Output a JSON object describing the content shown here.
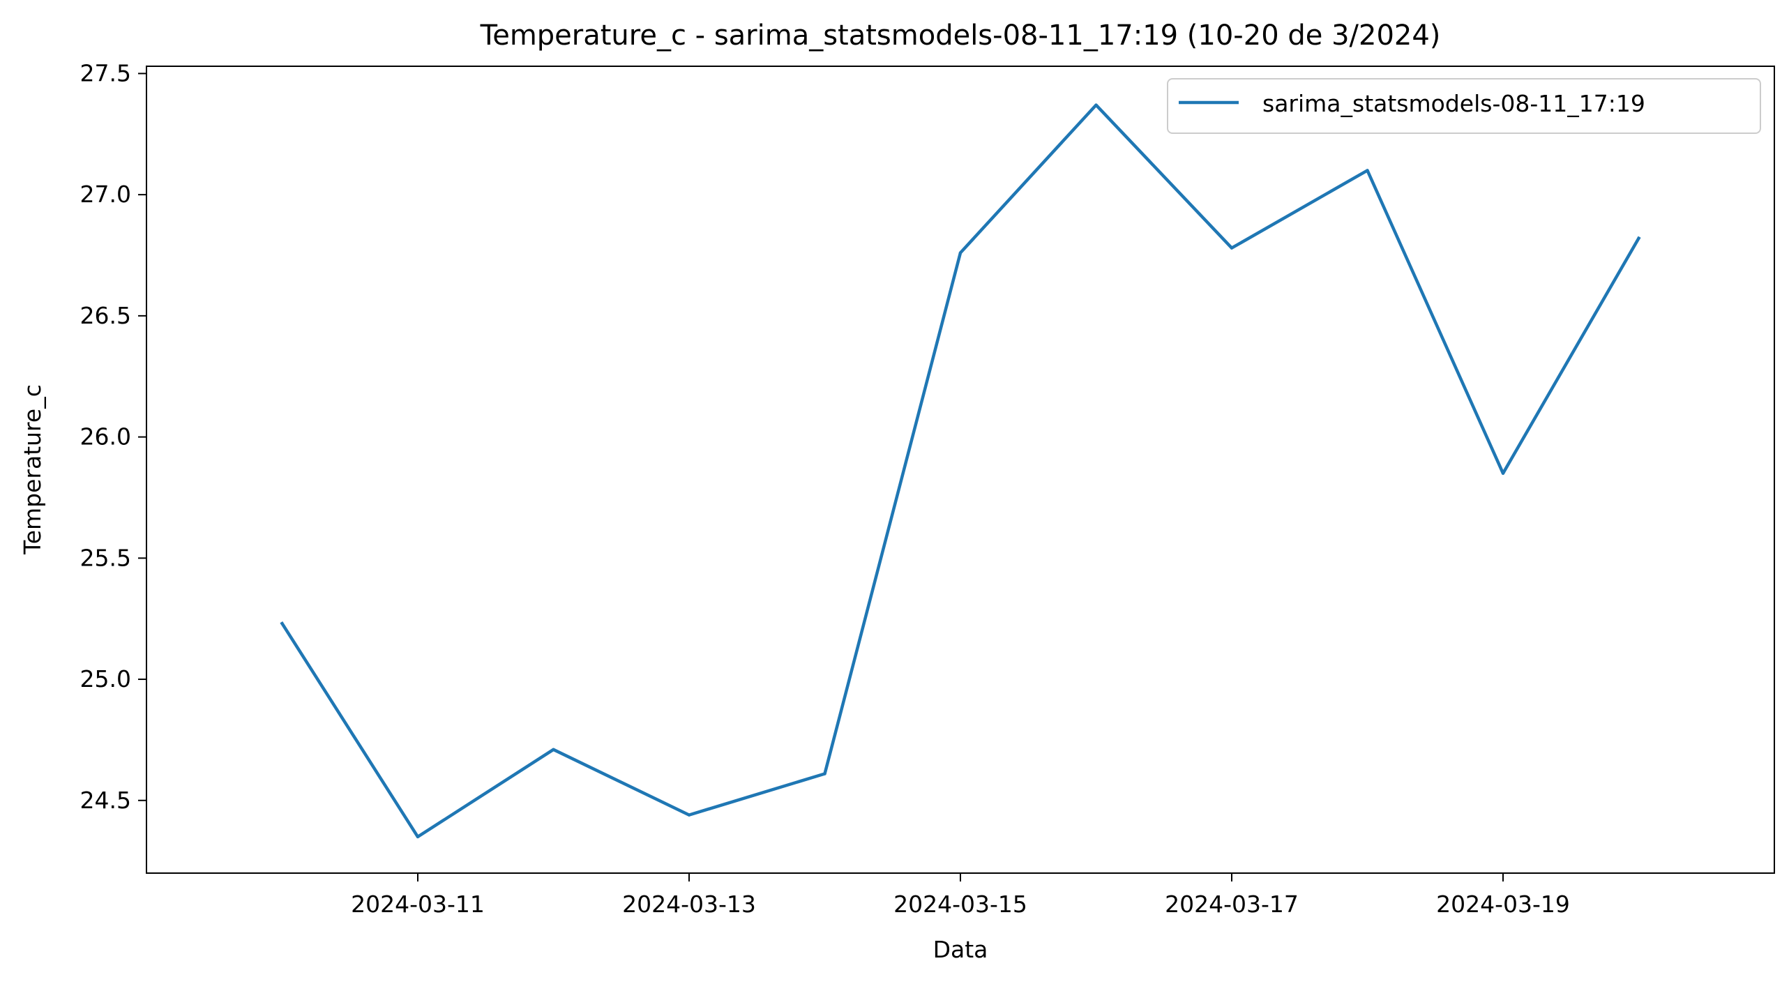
{
  "chart_data": {
    "type": "line",
    "title": "Temperature_c - sarima_statsmodels-08-11_17:19 (10-20 de 3/2024)",
    "xlabel": "Data",
    "ylabel": "Temperature_c",
    "x": [
      "2024-03-10",
      "2024-03-11",
      "2024-03-12",
      "2024-03-13",
      "2024-03-14",
      "2024-03-15",
      "2024-03-16",
      "2024-03-17",
      "2024-03-18",
      "2024-03-19",
      "2024-03-20"
    ],
    "x_ticks": [
      "2024-03-11",
      "2024-03-13",
      "2024-03-15",
      "2024-03-17",
      "2024-03-19"
    ],
    "x_tick_labels": [
      "2024-03-11",
      "2024-03-13",
      "2024-03-15",
      "2024-03-17",
      "2024-03-19"
    ],
    "xlim": [
      "2024-03-09",
      "2024-03-21"
    ],
    "y_ticks": [
      24.5,
      25.0,
      25.5,
      26.0,
      26.5,
      27.0,
      27.5
    ],
    "y_tick_labels": [
      "24.5",
      "25.0",
      "25.5",
      "26.0",
      "26.5",
      "27.0",
      "27.5"
    ],
    "ylim": [
      24.2,
      27.53
    ],
    "grid": false,
    "legend_position": "top-right",
    "series": [
      {
        "name": "sarima_statsmodels-08-11_17:19",
        "color": "#1f77b4",
        "values": [
          25.23,
          24.35,
          24.71,
          24.44,
          24.61,
          26.76,
          27.37,
          26.78,
          27.1,
          25.85,
          26.82
        ]
      }
    ]
  }
}
